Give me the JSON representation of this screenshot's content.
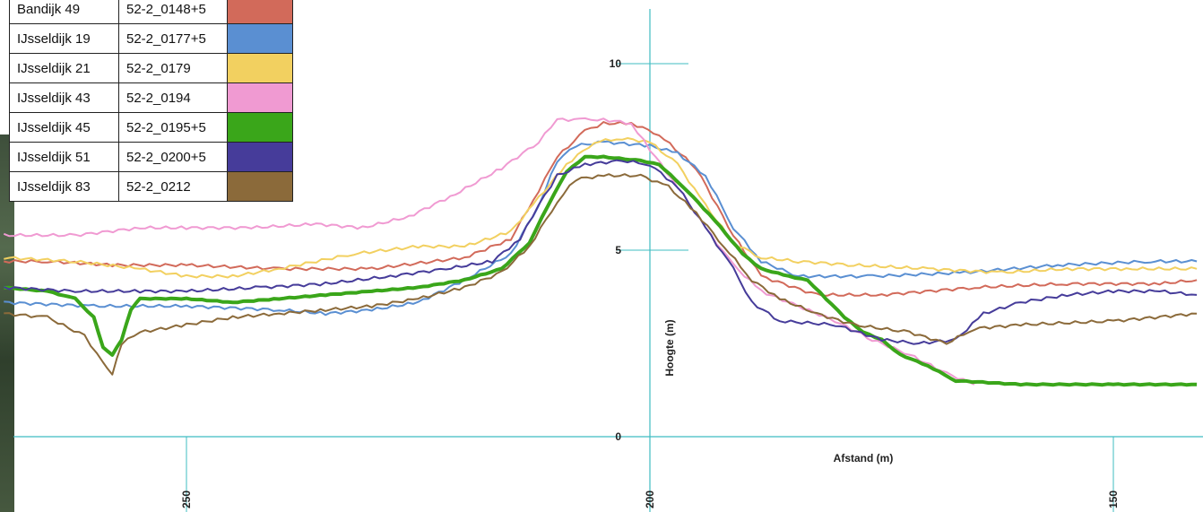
{
  "chart_data": {
    "type": "line",
    "xlabel": "Afstand (m)",
    "ylabel": "Hoogte (m)",
    "x_ticks": [
      250,
      200,
      150
    ],
    "y_ticks": [
      0,
      5,
      10
    ],
    "x_direction": "decreasing-left-to-right",
    "xlim": [
      269.7,
      141.0
    ],
    "ylim": [
      -1.7,
      11.7
    ],
    "series": [
      {
        "name": "Bandijk 49",
        "code": "52-2_0148+5",
        "color": "#d26a5a",
        "points": [
          [
            269.7,
            4.7
          ],
          [
            265,
            4.7
          ],
          [
            258,
            4.6
          ],
          [
            250,
            4.6
          ],
          [
            240,
            4.5
          ],
          [
            230,
            4.5
          ],
          [
            220,
            4.8
          ],
          [
            215,
            5.3
          ],
          [
            212,
            6.6
          ],
          [
            210,
            7.5
          ],
          [
            207,
            8.2
          ],
          [
            205,
            8.4
          ],
          [
            202,
            8.4
          ],
          [
            199,
            8.1
          ],
          [
            195,
            7.2
          ],
          [
            191,
            5.4
          ],
          [
            188,
            4.3
          ],
          [
            182,
            3.8
          ],
          [
            175,
            3.8
          ],
          [
            165,
            4.0
          ],
          [
            155,
            4.1
          ],
          [
            145,
            4.1
          ],
          [
            141,
            4.2
          ]
        ]
      },
      {
        "name": "IJsseldijk 19",
        "code": "52-2_0177+5",
        "color": "#5a8fd2",
        "points": [
          [
            269.7,
            3.6
          ],
          [
            260,
            3.5
          ],
          [
            250,
            3.5
          ],
          [
            240,
            3.4
          ],
          [
            235,
            3.3
          ],
          [
            230,
            3.4
          ],
          [
            225,
            3.6
          ],
          [
            220,
            4.2
          ],
          [
            215,
            4.9
          ],
          [
            212,
            6.2
          ],
          [
            210,
            7.4
          ],
          [
            208,
            7.8
          ],
          [
            205,
            7.9
          ],
          [
            200,
            7.8
          ],
          [
            197,
            7.6
          ],
          [
            194,
            7.0
          ],
          [
            191,
            5.6
          ],
          [
            188,
            4.7
          ],
          [
            184,
            4.3
          ],
          [
            176,
            4.3
          ],
          [
            166,
            4.4
          ],
          [
            156,
            4.6
          ],
          [
            146,
            4.7
          ],
          [
            141,
            4.7
          ]
        ]
      },
      {
        "name": "IJsseldijk 21",
        "code": "52-2_0179",
        "color": "#f2d060",
        "points": [
          [
            269.7,
            4.8
          ],
          [
            262,
            4.7
          ],
          [
            255,
            4.5
          ],
          [
            250,
            4.3
          ],
          [
            245,
            4.3
          ],
          [
            240,
            4.5
          ],
          [
            232,
            4.9
          ],
          [
            225,
            5.1
          ],
          [
            220,
            5.1
          ],
          [
            215,
            5.5
          ],
          [
            212,
            6.4
          ],
          [
            209,
            7.3
          ],
          [
            206,
            7.9
          ],
          [
            203,
            8.0
          ],
          [
            200,
            7.9
          ],
          [
            197,
            7.3
          ],
          [
            194,
            6.2
          ],
          [
            191,
            5.2
          ],
          [
            188,
            4.8
          ],
          [
            184,
            4.7
          ],
          [
            178,
            4.6
          ],
          [
            170,
            4.5
          ],
          [
            162,
            4.4
          ],
          [
            155,
            4.5
          ],
          [
            148,
            4.5
          ],
          [
            141,
            4.5
          ]
        ]
      },
      {
        "name": "IJsseldijk 43",
        "code": "52-2_0194",
        "color": "#f09ad2",
        "points": [
          [
            269.7,
            5.4
          ],
          [
            262,
            5.4
          ],
          [
            255,
            5.6
          ],
          [
            250,
            5.6
          ],
          [
            243,
            5.6
          ],
          [
            236,
            5.7
          ],
          [
            231,
            5.6
          ],
          [
            226,
            5.9
          ],
          [
            221,
            6.5
          ],
          [
            216,
            7.2
          ],
          [
            212,
            7.9
          ],
          [
            210,
            8.5
          ],
          [
            207,
            8.5
          ],
          [
            205,
            8.5
          ],
          [
            202,
            8.4
          ],
          [
            200,
            7.7
          ],
          [
            197,
            6.7
          ],
          [
            194,
            5.6
          ],
          [
            191,
            4.6
          ],
          [
            188,
            3.9
          ],
          [
            184,
            3.5
          ],
          [
            180,
            3.1
          ],
          [
            176,
            2.6
          ],
          [
            172,
            2.2
          ],
          [
            168,
            1.7
          ],
          [
            165,
            1.4
          ]
        ]
      },
      {
        "name": "IJsseldijk 45",
        "code": "52-2_0195+5",
        "color": "#3aa61a",
        "stroke_width": 4,
        "points": [
          [
            269.7,
            4.0
          ],
          [
            265,
            3.9
          ],
          [
            262,
            3.7
          ],
          [
            260,
            3.2
          ],
          [
            259,
            2.4
          ],
          [
            258,
            2.2
          ],
          [
            257,
            2.6
          ],
          [
            256,
            3.4
          ],
          [
            255,
            3.7
          ],
          [
            250,
            3.7
          ],
          [
            245,
            3.6
          ],
          [
            240,
            3.7
          ],
          [
            235,
            3.8
          ],
          [
            230,
            3.9
          ],
          [
            225,
            4.0
          ],
          [
            220,
            4.2
          ],
          [
            216,
            4.5
          ],
          [
            213,
            5.2
          ],
          [
            211,
            6.2
          ],
          [
            209,
            7.1
          ],
          [
            207,
            7.5
          ],
          [
            205,
            7.5
          ],
          [
            201,
            7.4
          ],
          [
            199,
            7.3
          ],
          [
            196,
            6.6
          ],
          [
            193,
            5.8
          ],
          [
            190,
            4.9
          ],
          [
            188,
            4.5
          ],
          [
            185,
            4.3
          ],
          [
            183,
            4.2
          ],
          [
            181,
            3.7
          ],
          [
            179,
            3.2
          ],
          [
            177,
            2.8
          ],
          [
            175,
            2.6
          ],
          [
            173,
            2.2
          ],
          [
            170,
            1.9
          ],
          [
            167,
            1.5
          ],
          [
            160,
            1.4
          ],
          [
            150,
            1.4
          ],
          [
            141,
            1.4
          ]
        ]
      },
      {
        "name": "IJsseldijk 51",
        "code": "52-2_0200+5",
        "color": "#463c9a",
        "points": [
          [
            269.7,
            4.0
          ],
          [
            262,
            3.9
          ],
          [
            255,
            3.9
          ],
          [
            250,
            3.9
          ],
          [
            242,
            4.0
          ],
          [
            235,
            4.1
          ],
          [
            228,
            4.3
          ],
          [
            222,
            4.5
          ],
          [
            217,
            4.7
          ],
          [
            214,
            5.3
          ],
          [
            212,
            6.2
          ],
          [
            210,
            7.0
          ],
          [
            207,
            7.3
          ],
          [
            203,
            7.4
          ],
          [
            200,
            7.3
          ],
          [
            197,
            6.7
          ],
          [
            194,
            5.6
          ],
          [
            191,
            4.5
          ],
          [
            189,
            3.6
          ],
          [
            186,
            3.1
          ],
          [
            180,
            3.0
          ],
          [
            175,
            2.6
          ],
          [
            171,
            2.5
          ],
          [
            167,
            2.6
          ],
          [
            164,
            3.3
          ],
          [
            160,
            3.6
          ],
          [
            155,
            3.8
          ],
          [
            150,
            3.9
          ],
          [
            145,
            3.9
          ],
          [
            141,
            3.8
          ]
        ]
      },
      {
        "name": "IJsseldijk 83",
        "code": "52-2_0212",
        "color": "#8b6a3a",
        "points": [
          [
            269.7,
            3.3
          ],
          [
            265,
            3.2
          ],
          [
            261,
            2.7
          ],
          [
            259,
            2.0
          ],
          [
            258,
            1.7
          ],
          [
            257,
            2.5
          ],
          [
            255,
            2.8
          ],
          [
            250,
            3.0
          ],
          [
            245,
            3.2
          ],
          [
            240,
            3.3
          ],
          [
            235,
            3.4
          ],
          [
            230,
            3.5
          ],
          [
            225,
            3.7
          ],
          [
            220,
            4.0
          ],
          [
            216,
            4.4
          ],
          [
            213,
            5.1
          ],
          [
            210,
            6.3
          ],
          [
            208,
            6.9
          ],
          [
            205,
            7.0
          ],
          [
            201,
            7.0
          ],
          [
            198,
            6.7
          ],
          [
            195,
            6.0
          ],
          [
            192,
            5.1
          ],
          [
            189,
            4.2
          ],
          [
            186,
            3.7
          ],
          [
            182,
            3.3
          ],
          [
            178,
            3.0
          ],
          [
            172,
            2.8
          ],
          [
            168,
            2.5
          ],
          [
            165,
            2.9
          ],
          [
            160,
            3.0
          ],
          [
            150,
            3.1
          ],
          [
            141,
            3.3
          ]
        ]
      }
    ]
  }
}
